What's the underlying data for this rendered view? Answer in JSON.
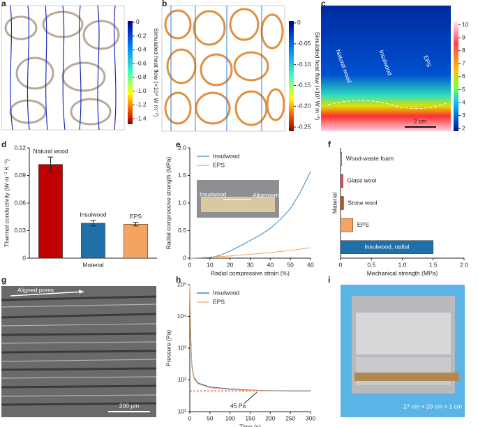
{
  "panel_letters": [
    "a",
    "b",
    "c",
    "d",
    "e",
    "f",
    "g",
    "h",
    "i"
  ],
  "panels": {
    "a": {
      "colorbar": {
        "label": "Simulated heat flow (×10⁴ W m⁻²)",
        "lim": [
          -1.48,
          0.02
        ],
        "ticks": [
          0,
          -0.2,
          -0.4,
          -0.6,
          -0.8,
          {
            "value": -1,
            "label": "-1.0"
          },
          -1.2,
          -1.4
        ]
      }
    },
    "b": {
      "colorbar": {
        "label": "Simulated heat flow (×10² W m⁻²)",
        "lim": [
          -0.26,
          0.005
        ],
        "ticks": [
          0,
          -0.05,
          {
            "value": -0.1,
            "label": "-0.10"
          },
          -0.15,
          {
            "value": -0.2,
            "label": "-0.20"
          },
          -0.25
        ]
      }
    },
    "c": {
      "labels": [
        "Natural wood",
        "Insulwood",
        "EPS"
      ],
      "scale_bar": "2 cm",
      "colorbar": {
        "label": "Temperature (×10 °C)",
        "lim": [
          1.8,
          10.3
        ],
        "ticks": [
          2,
          3,
          4,
          5,
          6,
          7,
          8,
          9,
          10
        ]
      }
    },
    "g": {
      "annotation": "Aligned pores",
      "scale_bar": "200 μm"
    },
    "i": {
      "caption": "27 cm × 20 cm × 1 cm"
    }
  },
  "chart_data": [
    {
      "type": "bar",
      "categories": [
        "Natural wood",
        "Insulwood",
        "EPS"
      ],
      "values": [
        0.102,
        0.038,
        0.037
      ],
      "errors": [
        0.008,
        0.003,
        0.002
      ],
      "colors": [
        "#c00000",
        "#1f6fa8",
        "#f4a460"
      ],
      "ylim": [
        0,
        0.12
      ],
      "yticks": [
        0,
        0.03,
        0.06,
        0.09,
        0.12
      ],
      "xlabel": "Material",
      "ylabel": "Thermal conductivity (W m⁻¹ K⁻¹)"
    },
    {
      "type": "line",
      "x": [
        0,
        5,
        10,
        15,
        20,
        25,
        30,
        35,
        40,
        45,
        50,
        55,
        60
      ],
      "xlim": [
        0,
        60
      ],
      "xticks": [
        0,
        10,
        20,
        30,
        40,
        50,
        60
      ],
      "ylim": [
        0,
        2
      ],
      "yticks": [
        0,
        0.5,
        {
          "value": 1,
          "label": "1.0"
        },
        1.5,
        {
          "value": 2,
          "label": "2.0"
        }
      ],
      "xlabel": "Radial compressive strain (%)",
      "ylabel": "Radial compressive strength (MPa)",
      "legend": "upper left",
      "inset_labels": [
        "Insulwood",
        "Alignment"
      ],
      "series": [
        {
          "name": "Insulwood",
          "color": "#3a86c8",
          "values": [
            0,
            0.003,
            0.01,
            0.05,
            0.13,
            0.22,
            0.32,
            0.42,
            0.54,
            0.7,
            0.9,
            1.2,
            1.57
          ]
        },
        {
          "name": "EPS",
          "color": "#f4a460",
          "values": [
            0,
            0.01,
            0.02,
            0.03,
            0.04,
            0.055,
            0.07,
            0.085,
            0.1,
            0.12,
            0.14,
            0.165,
            0.19
          ]
        }
      ]
    },
    {
      "type": "hbar",
      "categories": [
        "Wood-waste foam",
        "Glass wool",
        "Stone wool",
        "EPS",
        "Insulwood, radial"
      ],
      "values": [
        0.02,
        0.04,
        0.05,
        0.2,
        1.5
      ],
      "colors": [
        "#b5d6a7",
        "#e0455a",
        "#b5561b",
        "#f4a460",
        "#1f6fa8"
      ],
      "xlim": [
        0,
        2
      ],
      "xticks": [
        0,
        0.5,
        {
          "value": 1,
          "label": "1.0"
        },
        1.5,
        {
          "value": 2,
          "label": "2.0"
        }
      ],
      "xlabel": "Mechanical strength (MPa)",
      "ylabel": "Material"
    },
    {
      "type": "line",
      "log_y": true,
      "x": [
        0,
        2,
        5,
        10,
        20,
        50,
        100,
        150,
        200,
        250,
        300
      ],
      "xlim": [
        0,
        300
      ],
      "xticks": [
        0,
        50,
        100,
        150,
        200,
        250,
        300
      ],
      "ylim": [
        10,
        100000
      ],
      "yticks": [
        {
          "value": 10,
          "label": "10¹"
        },
        {
          "value": 100,
          "label": "10²"
        },
        {
          "value": 1000,
          "label": "10³"
        },
        {
          "value": 10000,
          "label": "10⁴"
        },
        {
          "value": 100000,
          "label": "10⁵"
        }
      ],
      "xlabel": "Time (s)",
      "ylabel": "Pressure (Pa)",
      "legend": "upper left",
      "reference": {
        "value": 45,
        "label": "45 Pa",
        "color": "#e02020"
      },
      "series": [
        {
          "name": "Insulwood",
          "color": "#1f6fa8",
          "values": [
            100000,
            3000,
            300,
            120,
            80,
            60,
            52,
            48,
            46,
            45,
            45
          ]
        },
        {
          "name": "EPS",
          "color": "#f4a460",
          "values": [
            100000,
            2500,
            250,
            110,
            75,
            57,
            50,
            47,
            45,
            44,
            44
          ]
        }
      ]
    }
  ]
}
